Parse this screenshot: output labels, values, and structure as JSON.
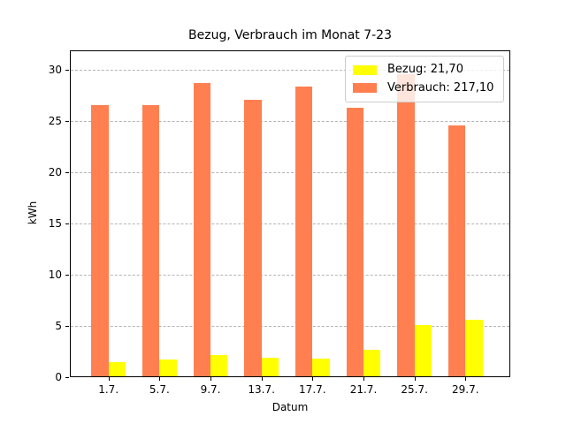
{
  "figure": {
    "title": "Bezug, Verbrauch im Monat 7-23",
    "xlabel": "Datum",
    "ylabel": "kWh"
  },
  "chart_data": {
    "type": "bar",
    "title": "Bezug, Verbrauch im Monat 7-23",
    "xlabel": "Datum",
    "ylabel": "kWh",
    "categories": [
      "1.7.",
      "5.7.",
      "9.7.",
      "13.7.",
      "17.7.",
      "21.7.",
      "25.7.",
      "29.7."
    ],
    "series": [
      {
        "name": "Bezug",
        "legend_label": "Bezug: 21,70",
        "total_display": "21,70",
        "color": "#ffff00",
        "values": [
          1.4,
          1.6,
          2.1,
          1.8,
          1.7,
          2.6,
          5.0,
          5.5
        ]
      },
      {
        "name": "Verbrauch",
        "legend_label": "Verbrauch: 217,10",
        "total_display": "217,10",
        "color": "#ff7f50",
        "values": [
          26.5,
          26.5,
          28.6,
          27.0,
          28.3,
          26.2,
          29.5,
          24.5
        ]
      }
    ],
    "ylim": [
      0,
      31.9
    ],
    "yticks": [
      0,
      5,
      10,
      15,
      20,
      25,
      30
    ],
    "grid": {
      "axis": "y",
      "style": "dashed",
      "color": "#b4b4b4"
    },
    "legend_position": "upper right"
  }
}
